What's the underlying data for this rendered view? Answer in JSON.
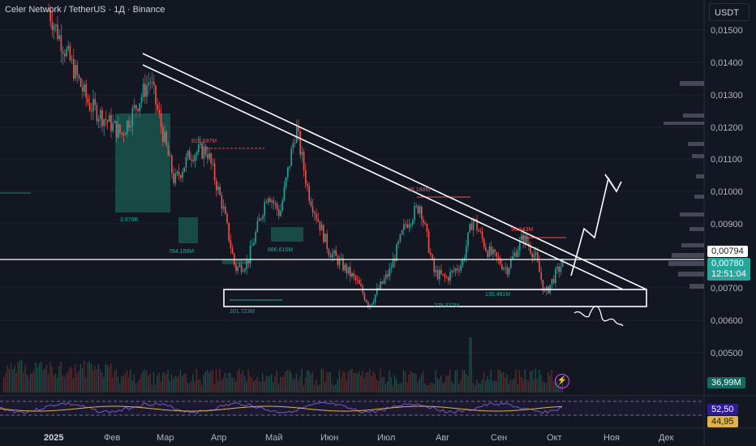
{
  "header": {
    "title": "Celer Network / TetherUS · 1Д · Binance",
    "currency": "USDT"
  },
  "price_axis": [
    "0,01500",
    "0,01400",
    "0,01300",
    "0,01200",
    "0,01100",
    "0,01000",
    "0,00900",
    "0,00700",
    "0,00600",
    "0,00500"
  ],
  "time_axis": [
    {
      "label": "2025",
      "bold": true
    },
    {
      "label": "Фев"
    },
    {
      "label": "Мар"
    },
    {
      "label": "Апр"
    },
    {
      "label": "Май"
    },
    {
      "label": "Июн"
    },
    {
      "label": "Июл"
    },
    {
      "label": "Авг"
    },
    {
      "label": "Сен"
    },
    {
      "label": "Окт"
    },
    {
      "label": "Ноя"
    },
    {
      "label": "Дек"
    }
  ],
  "tags": {
    "resistance": "0,00794",
    "price": "0,00780",
    "countdown": "12:51:04",
    "volume": "36,99M",
    "indicator_1": "52,50",
    "indicator_2": "44,95"
  },
  "annotations": [
    "828.597M",
    "3.879B",
    "784.188M",
    "886.616M",
    "86.188M",
    "96.843M",
    "201.723M",
    "135.491M",
    "275.327M"
  ],
  "colors": {
    "bg": "#131722",
    "up": "#26a69a",
    "down": "#ef5350",
    "line": "#ffffff",
    "osc": "#7e57c2",
    "signal": "#e0b34a"
  }
}
